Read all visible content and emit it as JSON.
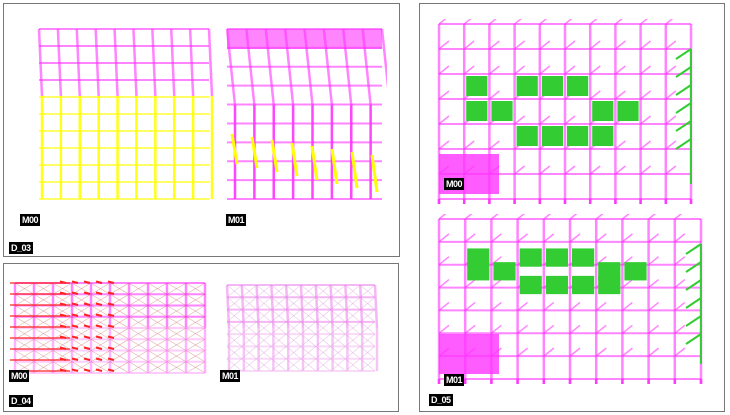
{
  "panels": [
    {
      "id": "D_03",
      "views": [
        "M00",
        "M01"
      ]
    },
    {
      "id": "D_04",
      "views": [
        "M00",
        "M01"
      ]
    },
    {
      "id": "D_05",
      "views": [
        "M00",
        "M01"
      ]
    }
  ],
  "colors": {
    "frame_pink": "#ff33ff",
    "column_yellow": "#ffff00",
    "slab_green": "#33cc33",
    "load_red": "#ff2222",
    "border": "#777777"
  }
}
